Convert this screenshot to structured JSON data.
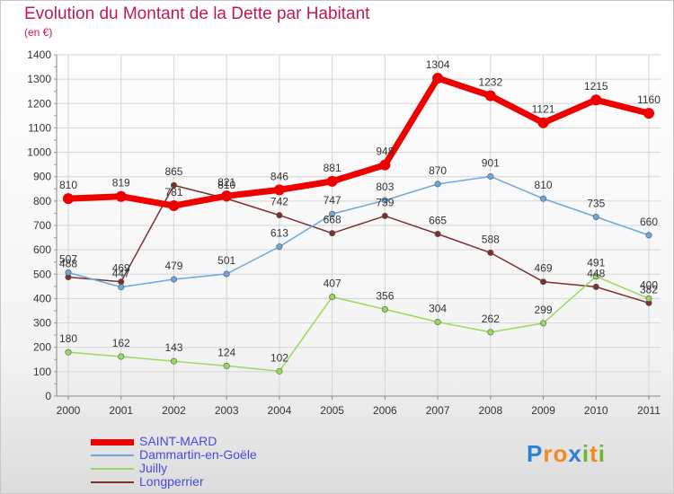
{
  "title": "Evolution du Montant de la Dette par Habitant",
  "unit": "(en €)",
  "brand": {
    "letters": [
      "P",
      "r",
      "o",
      "x",
      "i",
      "t",
      "i"
    ],
    "colors": [
      "#2e7fd8",
      "#f08a1c",
      "#f08a1c",
      "#2e7fd8",
      "#6ab82e",
      "#f08a1c",
      "#6ab82e"
    ]
  },
  "chart_data": {
    "type": "line",
    "title": "Evolution du Montant de la Dette par Habitant",
    "ylabel": "(en €)",
    "ylim": [
      0,
      1400
    ],
    "yticks": [
      "0",
      "100",
      "200",
      "300",
      "400",
      "500",
      "600",
      "700",
      "800",
      "900",
      "1000",
      "1100",
      "1200",
      "1300",
      "1400"
    ],
    "categories": [
      "2000",
      "2001",
      "2002",
      "2003",
      "2004",
      "2005",
      "2006",
      "2007",
      "2008",
      "2009",
      "2010",
      "2011"
    ],
    "grid": true,
    "legend_position": "bottom-left",
    "series": [
      {
        "name": "SAINT-MARD",
        "color": "#ee0000",
        "values": [
          810,
          819,
          781,
          821,
          846,
          881,
          948,
          1304,
          1232,
          1121,
          1215,
          1160
        ],
        "labels": [
          "810",
          "819",
          "781",
          "821",
          "846",
          "881",
          "948",
          "1304",
          "1232",
          "1121",
          "1215",
          "1160"
        ]
      },
      {
        "name": "Dammartin-en-Goële",
        "color": "#6ea6d8",
        "values": [
          507,
          447,
          479,
          501,
          613,
          747,
          803,
          870,
          901,
          810,
          735,
          660
        ],
        "labels": [
          "507",
          "447",
          "479",
          "501",
          "613",
          "747",
          "803",
          "870",
          "901",
          "810",
          "735",
          "660"
        ]
      },
      {
        "name": "Juilly",
        "color": "#9ad85a",
        "values": [
          180,
          162,
          143,
          124,
          102,
          407,
          356,
          304,
          262,
          299,
          491,
          400
        ],
        "labels": [
          "180",
          "162",
          "143",
          "124",
          "102",
          "407",
          "356",
          "304",
          "262",
          "299",
          "491",
          "400"
        ]
      },
      {
        "name": "Longperrier",
        "color": "#7a3030",
        "values": [
          488,
          469,
          865,
          810,
          742,
          668,
          739,
          665,
          588,
          469,
          448,
          382
        ],
        "labels": [
          "488",
          "469",
          "865",
          "810",
          "742",
          "668",
          "739",
          "665",
          "588",
          "469",
          "448",
          "382"
        ]
      }
    ]
  }
}
